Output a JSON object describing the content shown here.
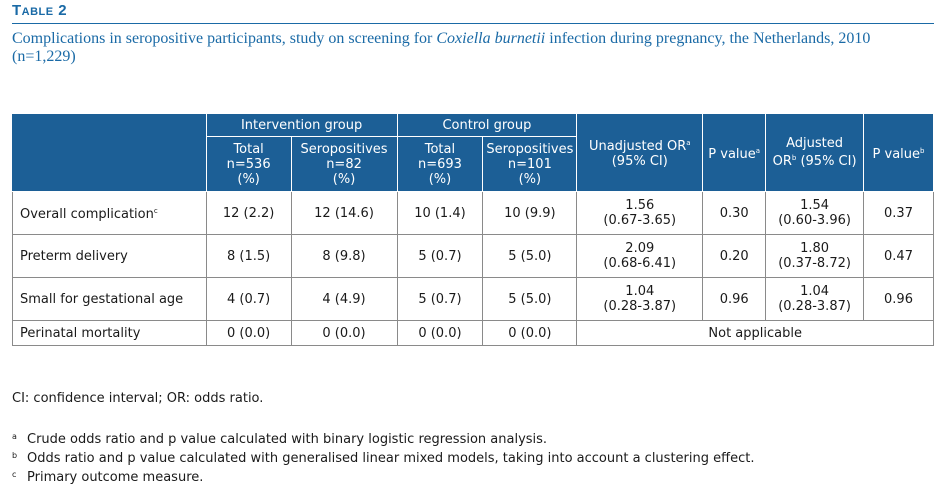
{
  "table_label": "Table 2",
  "caption": {
    "before": "Complications in seropositive participants, study on screening for ",
    "organism": "Coxiella burnetii",
    "after": " infection during pregnancy, the Netherlands, 2010 (n=1,229)"
  },
  "header": {
    "intervention_group": "Intervention group",
    "control_group": "Control group",
    "unadjusted_or": "Unadjusted OR",
    "unadjusted_or_sup": "a",
    "ci95": "(95% CI)",
    "p_value": "P value",
    "p_value_a_sup": "a",
    "adjusted": "Adjusted",
    "or": "OR",
    "or_sup": "b",
    "adjusted_ci": " (95% CI)",
    "p_value_b_sup": "b",
    "subcols": [
      {
        "name": "Total",
        "n": "n=536",
        "pct": "(%)"
      },
      {
        "name": "Seropositives",
        "n": "n=82",
        "pct": "(%)"
      },
      {
        "name": "Total",
        "n": "n=693",
        "pct": "(%)"
      },
      {
        "name": "Seropositives",
        "n": "n=101",
        "pct": "(%)"
      }
    ]
  },
  "rows": [
    {
      "label": "Overall complication",
      "label_sup": "c",
      "int_total": "12 (2.2)",
      "int_sero": "12 (14.6)",
      "ctl_total": "10 (1.4)",
      "ctl_sero": "10 (9.9)",
      "unadj_or": "1.56",
      "unadj_ci": "(0.67-3.65)",
      "p_a": "0.30",
      "adj_or": "1.54",
      "adj_ci": "(0.60-3.96)",
      "p_b": "0.37"
    },
    {
      "label": "Preterm delivery",
      "label_sup": "",
      "int_total": "8 (1.5)",
      "int_sero": "8 (9.8)",
      "ctl_total": "5 (0.7)",
      "ctl_sero": "5 (5.0)",
      "unadj_or": "2.09",
      "unadj_ci": "(0.68-6.41)",
      "p_a": "0.20",
      "adj_or": "1.80",
      "adj_ci": "(0.37-8.72)",
      "p_b": "0.47"
    },
    {
      "label": "Small for gestational age",
      "label_sup": "",
      "int_total": "4 (0.7)",
      "int_sero": "4 (4.9)",
      "ctl_total": "5 (0.7)",
      "ctl_sero": "5 (5.0)",
      "unadj_or": "1.04",
      "unadj_ci": "(0.28-3.87)",
      "p_a": "0.96",
      "adj_or": "1.04",
      "adj_ci": "(0.28-3.87)",
      "p_b": "0.96"
    },
    {
      "label": "Perinatal mortality",
      "label_sup": "",
      "int_total": "0 (0.0)",
      "int_sero": "0 (0.0)",
      "ctl_total": "0 (0.0)",
      "ctl_sero": "0 (0.0)",
      "not_applicable": "Not applicable"
    }
  ],
  "abbrev_note": "CI: confidence interval; OR: odds ratio.",
  "footnotes": [
    {
      "marker": "a",
      "text": "Crude odds ratio and p value calculated with binary logistic regression analysis."
    },
    {
      "marker": "b",
      "text": "Odds ratio and p value calculated with generalised linear mixed models, taking into account a clustering effect."
    },
    {
      "marker": "c",
      "text": "Primary outcome measure."
    }
  ],
  "colors": {
    "accent": "#1a6aa6",
    "header_bg": "#1c5f96"
  }
}
